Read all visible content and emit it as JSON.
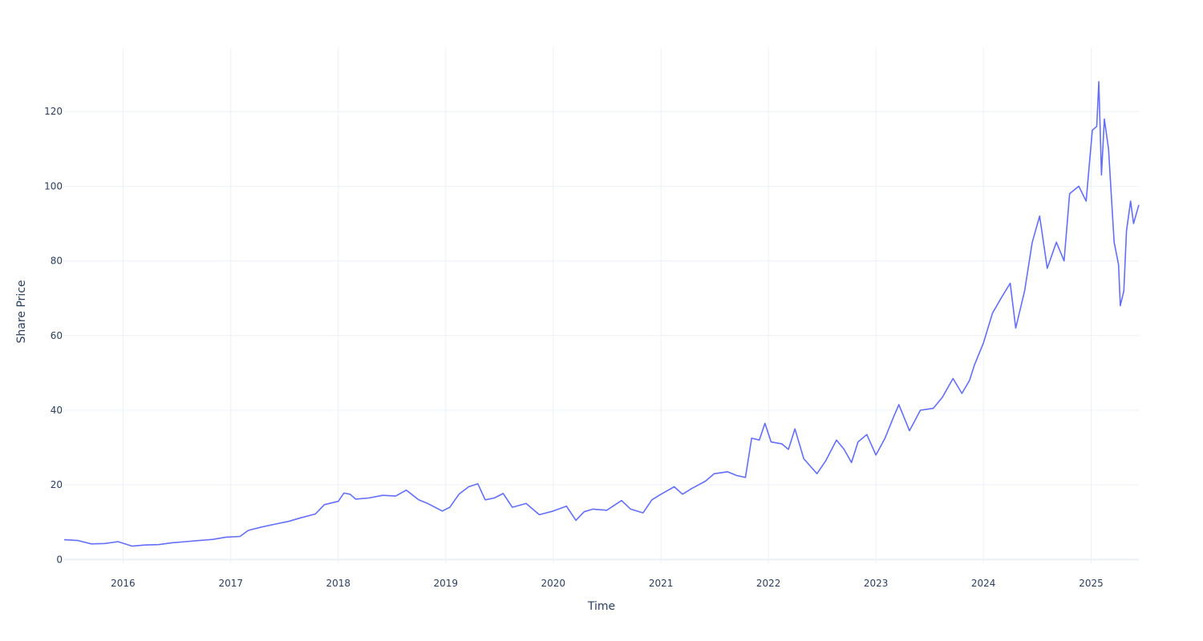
{
  "chart_data": {
    "type": "line",
    "title": "",
    "xlabel": "Time",
    "ylabel": "Share Price",
    "x_range": [
      "2015-06-15",
      "2025-06-12"
    ],
    "ylim": [
      -1,
      137
    ],
    "grid": true,
    "legend": "none",
    "line_color": "#636efa",
    "x_ticks": [
      {
        "date": "2016-01-01",
        "label": "2016"
      },
      {
        "date": "2017-01-01",
        "label": "2017"
      },
      {
        "date": "2018-01-01",
        "label": "2018"
      },
      {
        "date": "2019-01-01",
        "label": "2019"
      },
      {
        "date": "2020-01-01",
        "label": "2020"
      },
      {
        "date": "2021-01-01",
        "label": "2021"
      },
      {
        "date": "2022-01-01",
        "label": "2022"
      },
      {
        "date": "2023-01-01",
        "label": "2023"
      },
      {
        "date": "2024-01-01",
        "label": "2024"
      },
      {
        "date": "2025-01-01",
        "label": "2025"
      }
    ],
    "y_ticks": [
      {
        "value": 0,
        "label": "0"
      },
      {
        "value": 20,
        "label": "20"
      },
      {
        "value": 40,
        "label": "40"
      },
      {
        "value": 60,
        "label": "60"
      },
      {
        "value": 80,
        "label": "80"
      },
      {
        "value": 100,
        "label": "100"
      },
      {
        "value": 120,
        "label": "120"
      }
    ],
    "series": [
      {
        "points": [
          [
            "2015-06-15",
            5.3
          ],
          [
            "2015-08-01",
            5.1
          ],
          [
            "2015-09-15",
            4.2
          ],
          [
            "2015-11-01",
            4.3
          ],
          [
            "2015-12-15",
            4.8
          ],
          [
            "2016-02-01",
            3.6
          ],
          [
            "2016-03-15",
            3.9
          ],
          [
            "2016-05-01",
            4.0
          ],
          [
            "2016-06-15",
            4.5
          ],
          [
            "2016-08-01",
            4.8
          ],
          [
            "2016-09-15",
            5.1
          ],
          [
            "2016-11-01",
            5.4
          ],
          [
            "2016-12-15",
            6.0
          ],
          [
            "2017-02-01",
            6.2
          ],
          [
            "2017-03-01",
            7.8
          ],
          [
            "2017-04-15",
            8.7
          ],
          [
            "2017-06-01",
            9.5
          ],
          [
            "2017-07-15",
            10.2
          ],
          [
            "2017-09-01",
            11.3
          ],
          [
            "2017-10-15",
            12.2
          ],
          [
            "2017-11-15",
            14.7
          ],
          [
            "2018-01-01",
            15.6
          ],
          [
            "2018-01-20",
            17.8
          ],
          [
            "2018-02-10",
            17.5
          ],
          [
            "2018-03-01",
            16.2
          ],
          [
            "2018-04-15",
            16.5
          ],
          [
            "2018-06-01",
            17.2
          ],
          [
            "2018-07-15",
            17.0
          ],
          [
            "2018-08-20",
            18.6
          ],
          [
            "2018-10-01",
            16.0
          ],
          [
            "2018-11-01",
            15.0
          ],
          [
            "2018-12-20",
            13.0
          ],
          [
            "2019-01-15",
            14.0
          ],
          [
            "2019-02-15",
            17.5
          ],
          [
            "2019-03-20",
            19.5
          ],
          [
            "2019-04-20",
            20.3
          ],
          [
            "2019-05-15",
            16.0
          ],
          [
            "2019-06-15",
            16.5
          ],
          [
            "2019-07-15",
            17.7
          ],
          [
            "2019-08-15",
            14.0
          ],
          [
            "2019-10-01",
            15.0
          ],
          [
            "2019-11-15",
            12.0
          ],
          [
            "2020-01-01",
            13.0
          ],
          [
            "2020-02-15",
            14.3
          ],
          [
            "2020-03-18",
            10.5
          ],
          [
            "2020-04-15",
            12.8
          ],
          [
            "2020-05-15",
            13.5
          ],
          [
            "2020-07-01",
            13.2
          ],
          [
            "2020-08-20",
            15.8
          ],
          [
            "2020-09-20",
            13.5
          ],
          [
            "2020-11-01",
            12.5
          ],
          [
            "2020-12-01",
            16.0
          ],
          [
            "2021-01-01",
            17.5
          ],
          [
            "2021-02-15",
            19.5
          ],
          [
            "2021-03-15",
            17.5
          ],
          [
            "2021-04-15",
            19.0
          ],
          [
            "2021-06-01",
            21.0
          ],
          [
            "2021-07-01",
            23.0
          ],
          [
            "2021-08-15",
            23.5
          ],
          [
            "2021-09-15",
            22.5
          ],
          [
            "2021-10-15",
            22.0
          ],
          [
            "2021-11-05",
            32.5
          ],
          [
            "2021-12-01",
            32.0
          ],
          [
            "2021-12-20",
            36.5
          ],
          [
            "2022-01-10",
            31.5
          ],
          [
            "2022-02-15",
            31.0
          ],
          [
            "2022-03-10",
            29.5
          ],
          [
            "2022-04-01",
            35.0
          ],
          [
            "2022-05-01",
            27.0
          ],
          [
            "2022-06-15",
            23.0
          ],
          [
            "2022-07-15",
            26.5
          ],
          [
            "2022-08-20",
            32.0
          ],
          [
            "2022-09-15",
            29.5
          ],
          [
            "2022-10-10",
            26.0
          ],
          [
            "2022-11-01",
            31.5
          ],
          [
            "2022-12-01",
            33.5
          ],
          [
            "2023-01-01",
            28.0
          ],
          [
            "2023-02-01",
            32.5
          ],
          [
            "2023-03-01",
            38.0
          ],
          [
            "2023-03-20",
            41.5
          ],
          [
            "2023-04-25",
            34.5
          ],
          [
            "2023-06-01",
            40.0
          ],
          [
            "2023-07-15",
            40.5
          ],
          [
            "2023-08-15",
            43.5
          ],
          [
            "2023-09-20",
            48.5
          ],
          [
            "2023-10-20",
            44.5
          ],
          [
            "2023-11-15",
            48.0
          ],
          [
            "2023-12-01",
            52.0
          ],
          [
            "2024-01-01",
            58.0
          ],
          [
            "2024-02-01",
            66.0
          ],
          [
            "2024-03-01",
            70.0
          ],
          [
            "2024-04-01",
            74.0
          ],
          [
            "2024-04-20",
            62.0
          ],
          [
            "2024-05-20",
            72.0
          ],
          [
            "2024-06-15",
            85.0
          ],
          [
            "2024-07-10",
            92.0
          ],
          [
            "2024-08-05",
            78.0
          ],
          [
            "2024-09-05",
            85.0
          ],
          [
            "2024-10-01",
            80.0
          ],
          [
            "2024-10-20",
            98.0
          ],
          [
            "2024-11-20",
            100.0
          ],
          [
            "2024-12-15",
            96.0
          ],
          [
            "2025-01-05",
            115.0
          ],
          [
            "2025-01-20",
            116.0
          ],
          [
            "2025-01-27",
            128.0
          ],
          [
            "2025-02-05",
            103.0
          ],
          [
            "2025-02-15",
            118.0
          ],
          [
            "2025-03-01",
            110.0
          ],
          [
            "2025-03-20",
            85.0
          ],
          [
            "2025-04-04",
            79.0
          ],
          [
            "2025-04-10",
            68.0
          ],
          [
            "2025-04-22",
            72.0
          ],
          [
            "2025-05-01",
            88.0
          ],
          [
            "2025-05-15",
            96.0
          ],
          [
            "2025-05-25",
            90.0
          ],
          [
            "2025-06-12",
            95.0
          ]
        ]
      }
    ]
  }
}
